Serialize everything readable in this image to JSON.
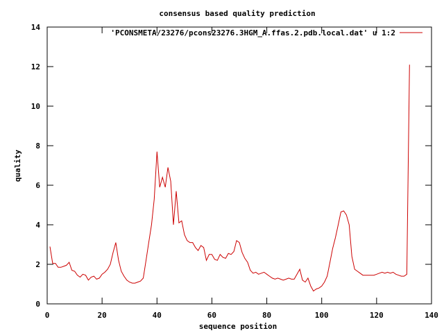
{
  "chart_data": {
    "type": "line",
    "title": "consensus based quality prediction",
    "xlabel": "sequence position",
    "ylabel": "quality",
    "xlim": [
      0,
      140
    ],
    "ylim": [
      0,
      14
    ],
    "xticks": [
      0,
      20,
      40,
      60,
      80,
      100,
      120,
      140
    ],
    "yticks": [
      0,
      2,
      4,
      6,
      8,
      10,
      12,
      14
    ],
    "grid": false,
    "legend_position": "top-right",
    "series": [
      {
        "name": "'PCONSMETA/23276/pcons23276.3HGM_A.ffas.2.pdb.local.dat' u 1:2",
        "color": "#cc0000",
        "x": [
          1,
          2,
          3,
          4,
          5,
          6,
          7,
          8,
          9,
          10,
          11,
          12,
          13,
          14,
          15,
          16,
          17,
          18,
          19,
          20,
          21,
          22,
          23,
          24,
          25,
          26,
          27,
          28,
          29,
          30,
          31,
          32,
          33,
          34,
          35,
          36,
          37,
          38,
          39,
          40,
          41,
          42,
          43,
          44,
          45,
          46,
          47,
          48,
          49,
          50,
          51,
          52,
          53,
          54,
          55,
          56,
          57,
          58,
          59,
          60,
          61,
          62,
          63,
          64,
          65,
          66,
          67,
          68,
          69,
          70,
          71,
          72,
          73,
          74,
          75,
          76,
          77,
          78,
          79,
          80,
          81,
          82,
          83,
          84,
          85,
          86,
          87,
          88,
          89,
          90,
          91,
          92,
          93,
          94,
          95,
          96,
          97,
          98,
          99,
          100,
          101,
          102,
          103,
          104,
          105,
          106,
          107,
          108,
          109,
          110,
          111,
          112,
          113,
          114,
          115,
          116,
          117,
          118,
          119,
          120,
          121,
          122,
          123,
          124,
          125,
          126,
          127,
          128,
          129,
          130,
          131,
          132
        ],
        "y": [
          2.9,
          2.05,
          2.05,
          1.85,
          1.85,
          1.9,
          1.95,
          2.1,
          1.7,
          1.65,
          1.45,
          1.35,
          1.5,
          1.45,
          1.2,
          1.35,
          1.4,
          1.25,
          1.3,
          1.5,
          1.6,
          1.75,
          2.0,
          2.6,
          3.1,
          2.2,
          1.65,
          1.4,
          1.2,
          1.1,
          1.05,
          1.05,
          1.1,
          1.15,
          1.3,
          2.2,
          3.1,
          4.0,
          5.3,
          7.7,
          5.9,
          6.4,
          5.9,
          6.9,
          6.2,
          4.0,
          5.7,
          4.1,
          4.2,
          3.5,
          3.2,
          3.1,
          3.1,
          2.85,
          2.7,
          2.95,
          2.85,
          2.2,
          2.5,
          2.5,
          2.25,
          2.2,
          2.5,
          2.35,
          2.3,
          2.55,
          2.5,
          2.65,
          3.2,
          3.1,
          2.6,
          2.3,
          2.1,
          1.7,
          1.55,
          1.6,
          1.5,
          1.55,
          1.6,
          1.5,
          1.4,
          1.3,
          1.25,
          1.3,
          1.25,
          1.2,
          1.25,
          1.3,
          1.25,
          1.25,
          1.5,
          1.75,
          1.2,
          1.1,
          1.3,
          0.9,
          0.65,
          0.75,
          0.8,
          0.9,
          1.1,
          1.4,
          2.1,
          2.8,
          3.35,
          4.0,
          4.65,
          4.7,
          4.5,
          4.0,
          2.4,
          1.75,
          1.65,
          1.55,
          1.45,
          1.45,
          1.45,
          1.45,
          1.45,
          1.5,
          1.55,
          1.6,
          1.55,
          1.6,
          1.55,
          1.6,
          1.5,
          1.45,
          1.4,
          1.4,
          1.5,
          12.1
        ]
      }
    ]
  }
}
